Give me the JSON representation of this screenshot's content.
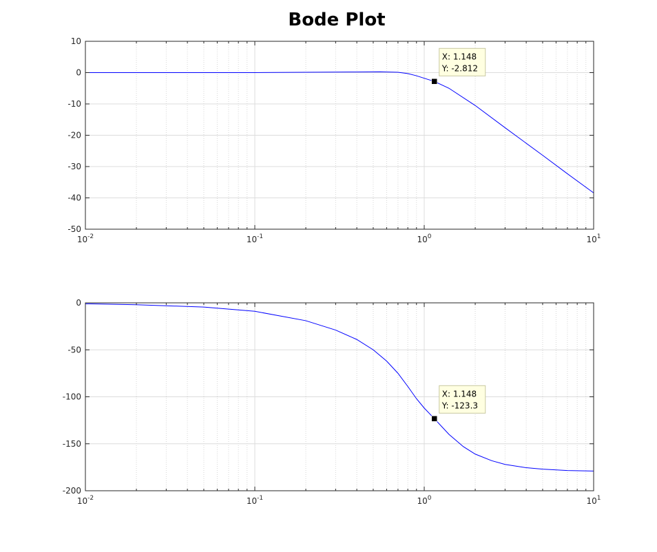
{
  "chart_data": [
    {
      "type": "line",
      "title": "Bode Plot",
      "xscale": "log",
      "xlim": [
        0.01,
        10
      ],
      "ylim": [
        -50,
        10
      ],
      "xticks": [
        {
          "base": "10",
          "exp": "-2"
        },
        {
          "base": "10",
          "exp": "-1"
        },
        {
          "base": "10",
          "exp": "0"
        },
        {
          "base": "10",
          "exp": "1"
        }
      ],
      "yticks": [
        "10",
        "0",
        "-10",
        "-20",
        "-30",
        "-40",
        "-50"
      ],
      "grid": true,
      "color": "#0000ff",
      "series": [
        {
          "x": [
            0.01,
            0.03,
            0.1,
            0.2,
            0.4,
            0.55,
            0.7,
            0.8,
            0.9,
            1.0,
            1.148,
            1.4,
            2.0,
            3.0,
            5.0,
            7.0,
            10.0
          ],
          "values": [
            0,
            0,
            0,
            0.1,
            0.2,
            0.25,
            0.1,
            -0.3,
            -1.0,
            -1.8,
            -2.812,
            -5.0,
            -10.5,
            -17.6,
            -26.4,
            -32.3,
            -38.4
          ]
        }
      ],
      "datatip": {
        "x_label": "X: 1.148",
        "y_label": "Y: -2.812",
        "x": 1.148,
        "y": -2.812
      }
    },
    {
      "type": "line",
      "xscale": "log",
      "xlim": [
        0.01,
        10
      ],
      "ylim": [
        -200,
        0
      ],
      "xticks": [
        {
          "base": "10",
          "exp": "-2"
        },
        {
          "base": "10",
          "exp": "-1"
        },
        {
          "base": "10",
          "exp": "0"
        },
        {
          "base": "10",
          "exp": "1"
        }
      ],
      "yticks": [
        "0",
        "-50",
        "-100",
        "-150",
        "-200"
      ],
      "grid": true,
      "color": "#0000ff",
      "series": [
        {
          "x": [
            0.01,
            0.02,
            0.05,
            0.1,
            0.2,
            0.3,
            0.4,
            0.5,
            0.6,
            0.7,
            0.8,
            0.9,
            1.0,
            1.148,
            1.4,
            1.7,
            2.0,
            2.5,
            3.0,
            4.0,
            5.0,
            7.0,
            10.0
          ],
          "values": [
            -1,
            -2,
            -4.5,
            -9,
            -19,
            -29,
            -39,
            -50,
            -62,
            -75,
            -89,
            -102,
            -112,
            -123.3,
            -140,
            -153,
            -161,
            -168,
            -172,
            -175.5,
            -177,
            -178.5,
            -179
          ]
        }
      ],
      "datatip": {
        "x_label": "X: 1.148",
        "y_label": "Y: -123.3",
        "x": 1.148,
        "y": -123.3
      }
    }
  ]
}
